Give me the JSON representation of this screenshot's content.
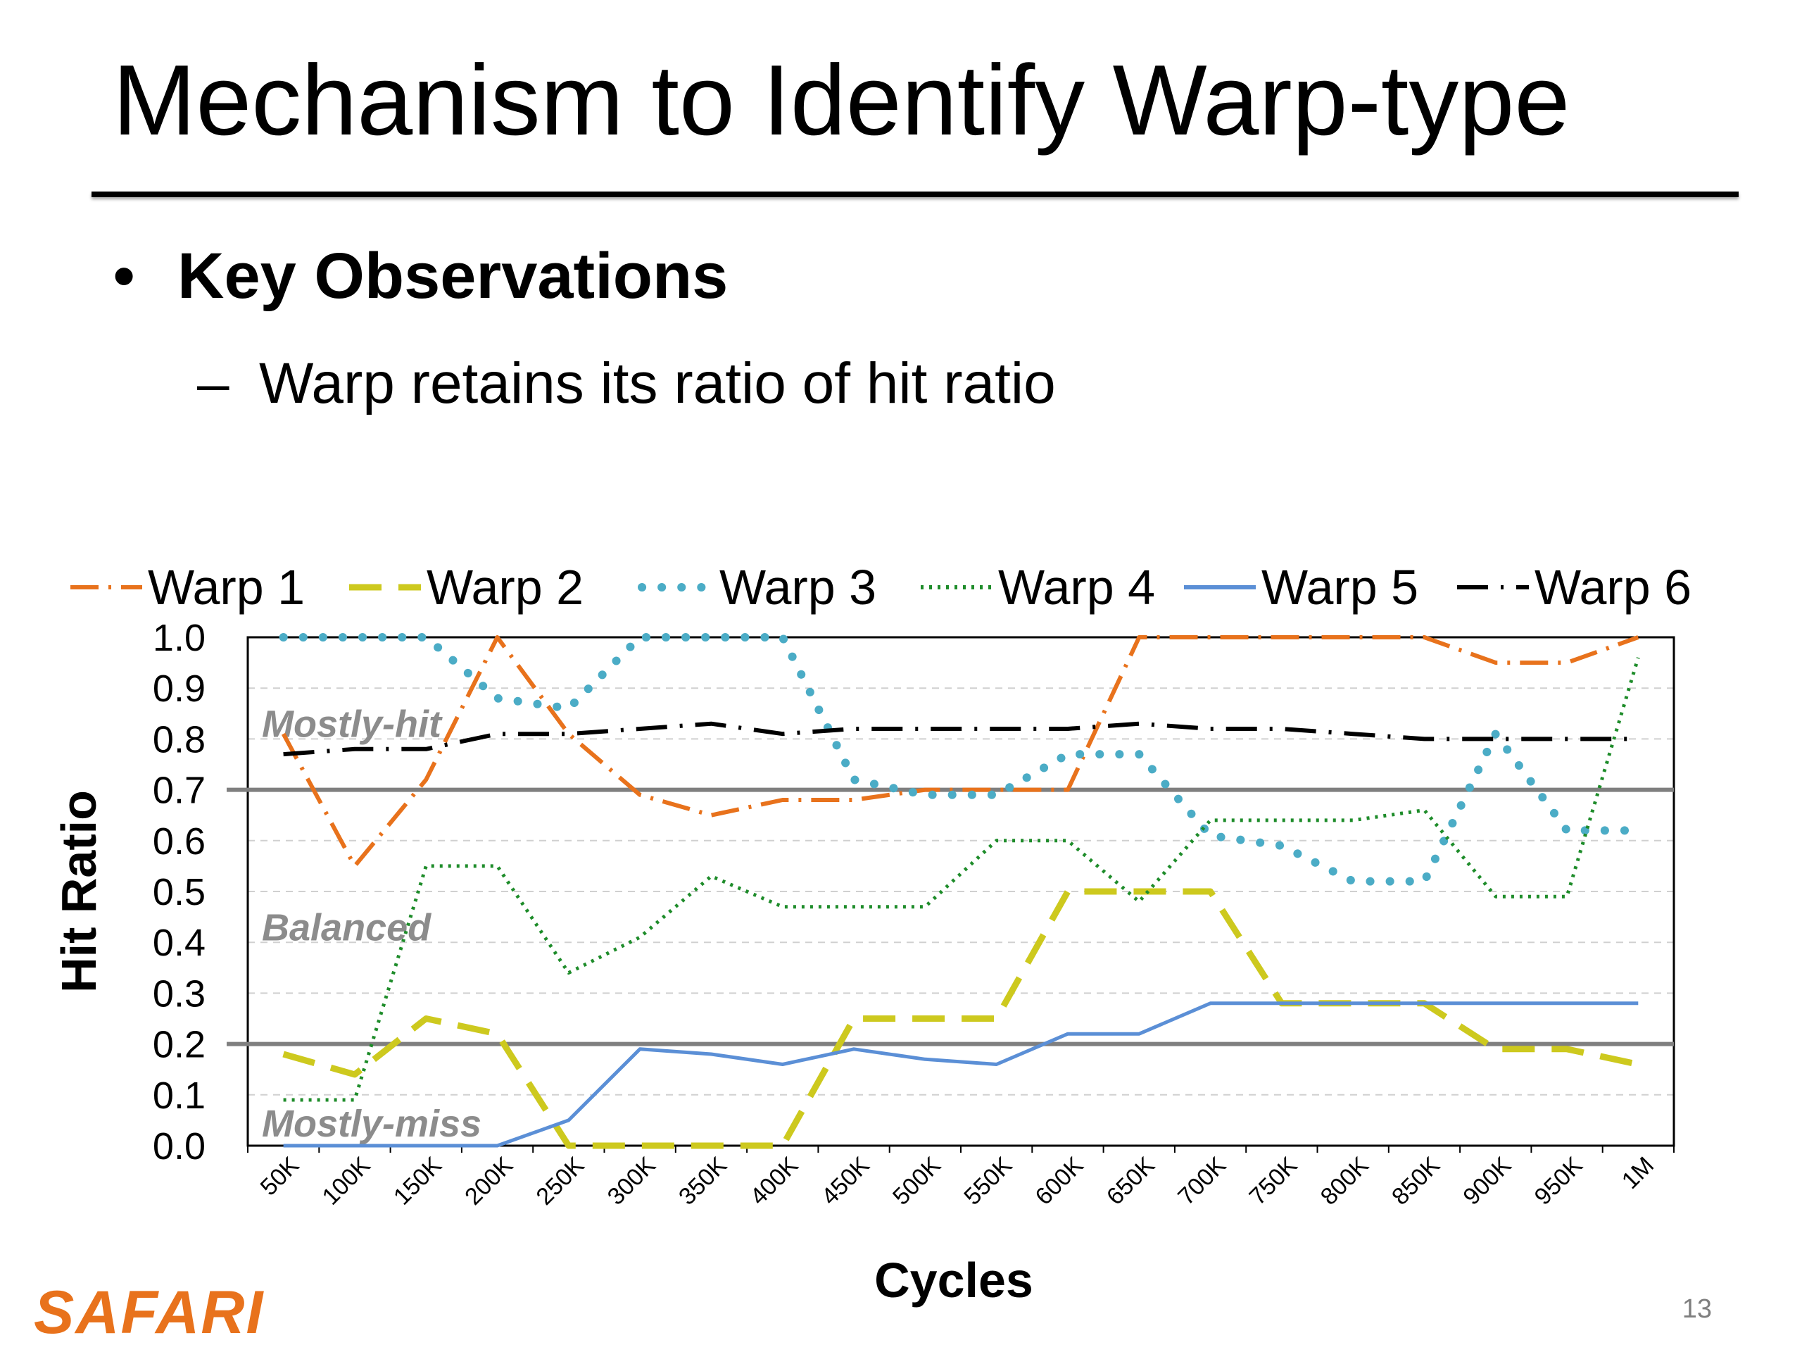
{
  "slide": {
    "title": "Mechanism to Identify Warp-type",
    "bullet": "Key Observations",
    "bullet_marker": "•",
    "sub_marker": "–",
    "sub_bullet": "Warp retains its ratio of hit ratio",
    "logo": "SAFARI",
    "page_number": "13"
  },
  "colors": {
    "logo": "#e8721c",
    "threshold_line": "#7f7f7f",
    "region_label": "#8c8c8c"
  },
  "chart_data": {
    "type": "line",
    "title": "",
    "xlabel": "Cycles",
    "ylabel": "Hit Ratio",
    "ylim": [
      0,
      1.0
    ],
    "y_ticks": [
      "0.0",
      "0.1",
      "0.2",
      "0.3",
      "0.4",
      "0.5",
      "0.6",
      "0.7",
      "0.8",
      "0.9",
      "1.0"
    ],
    "categories": [
      "50K",
      "100K",
      "150K",
      "200K",
      "250K",
      "300K",
      "350K",
      "400K",
      "450K",
      "500K",
      "550K",
      "600K",
      "650K",
      "700K",
      "750K",
      "800K",
      "850K",
      "900K",
      "950K",
      "1M"
    ],
    "grid": "horizontal dashed",
    "legend": "top",
    "series": [
      {
        "name": "Warp 1",
        "color": "#e8721c",
        "style": "dash-dot",
        "values": [
          0.81,
          0.55,
          0.72,
          1.0,
          0.81,
          0.69,
          0.65,
          0.68,
          0.68,
          0.7,
          0.7,
          0.7,
          1.0,
          1.0,
          1.0,
          1.0,
          1.0,
          0.95,
          0.95,
          1.0
        ]
      },
      {
        "name": "Warp 2",
        "color": "#cdc91e",
        "style": "long-dash",
        "values": [
          0.18,
          0.14,
          0.25,
          0.22,
          0.0,
          0.0,
          0.0,
          0.0,
          0.25,
          0.25,
          0.25,
          0.5,
          0.5,
          0.5,
          0.28,
          0.28,
          0.28,
          0.19,
          0.19,
          0.16
        ]
      },
      {
        "name": "Warp 3",
        "color": "#4bacc6",
        "style": "round-dot",
        "values": [
          1.0,
          1.0,
          1.0,
          0.88,
          0.86,
          1.0,
          1.0,
          1.0,
          0.72,
          0.69,
          0.69,
          0.77,
          0.77,
          0.61,
          0.59,
          0.52,
          0.52,
          0.81,
          0.62,
          0.62
        ]
      },
      {
        "name": "Warp 4",
        "color": "#1e8c2a",
        "style": "dotted",
        "values": [
          0.09,
          0.09,
          0.55,
          0.55,
          0.34,
          0.41,
          0.53,
          0.47,
          0.47,
          0.47,
          0.6,
          0.6,
          0.48,
          0.64,
          0.64,
          0.64,
          0.66,
          0.49,
          0.49,
          0.96
        ]
      },
      {
        "name": "Warp 5",
        "color": "#5b8fd6",
        "style": "solid",
        "values": [
          0.0,
          0.0,
          0.0,
          0.0,
          0.05,
          0.19,
          0.18,
          0.16,
          0.19,
          0.17,
          0.16,
          0.22,
          0.22,
          0.28,
          0.28,
          0.28,
          0.28,
          0.28,
          0.28,
          0.28
        ]
      },
      {
        "name": "Warp 6",
        "color": "#000000",
        "style": "long-dash-dot",
        "values": [
          0.77,
          0.78,
          0.78,
          0.81,
          0.81,
          0.82,
          0.83,
          0.81,
          0.82,
          0.82,
          0.82,
          0.82,
          0.83,
          0.82,
          0.82,
          0.81,
          0.8,
          0.8,
          0.8,
          0.8
        ]
      }
    ],
    "thresholds": [
      0.7,
      0.2
    ],
    "annotations": [
      "Mostly-hit",
      "Balanced",
      "Mostly-miss"
    ]
  }
}
